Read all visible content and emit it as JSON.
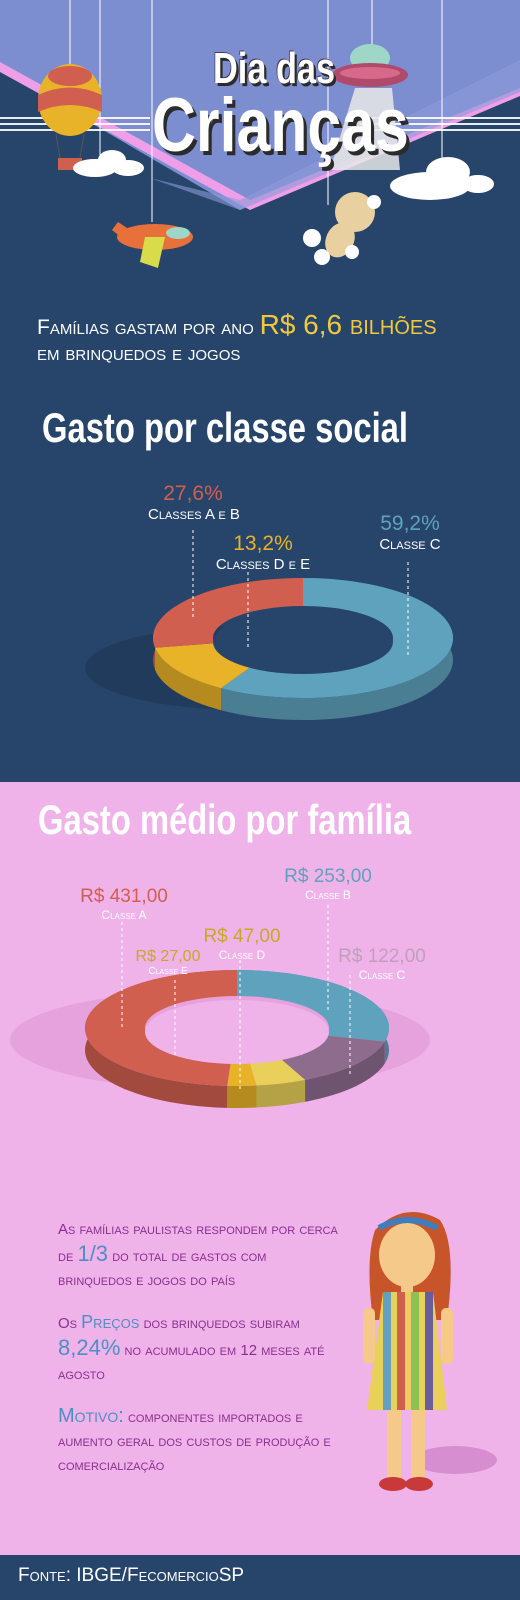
{
  "header": {
    "title_line1": "Dia das",
    "title_line2": "Crianças"
  },
  "intro": {
    "line1_text": "Famílias gastam por ano ",
    "line1_highlight": "R$ 6,6 bilhões",
    "line2_text": "em brinquedos e jogos"
  },
  "section1": {
    "title": "Gasto por classe social",
    "chart_data": {
      "type": "pie",
      "categories": [
        "Classe C",
        "Classes D e E",
        "Classes A e B"
      ],
      "values": [
        59.2,
        13.2,
        27.6
      ],
      "value_labels": [
        "59,2%",
        "13,2%",
        "27,6%"
      ],
      "colors": [
        "#5ea2bd",
        "#e8b229",
        "#d15f4f"
      ]
    }
  },
  "section2": {
    "title": "Gasto médio por família",
    "chart_data": {
      "type": "pie",
      "categories": [
        "Classe B",
        "Classe C",
        "Classe D",
        "Classe E",
        "Classe A"
      ],
      "values": [
        253.0,
        122.0,
        47.0,
        27.0,
        431.0
      ],
      "value_labels": [
        "R$ 253,00",
        "R$ 122,00",
        "R$ 47,00",
        "R$ 27,00",
        "R$ 431,00"
      ],
      "colors": [
        "#5ea2bd",
        "#8e6c8e",
        "#e8d05a",
        "#e8b229",
        "#d15f4f"
      ]
    }
  },
  "facts": [
    {
      "before": "As famílias paulistas respondem por cerca de ",
      "highlight": "1/3",
      "after": " do total de gastos com brinquedos e jogos do país"
    },
    {
      "before": "Os ",
      "highlight": "Preços",
      "middle": " dos brinquedos subiram ",
      "highlight2": "8,24%",
      "after": " no acumulado em 12 meses até agosto"
    },
    {
      "before": "",
      "highlight": "Motivo:",
      "after": " componentes importados e aumento geral dos custos de produção e comercialização"
    }
  ],
  "footer": {
    "source": "Fonte: IBGE/FecomercioSP"
  }
}
